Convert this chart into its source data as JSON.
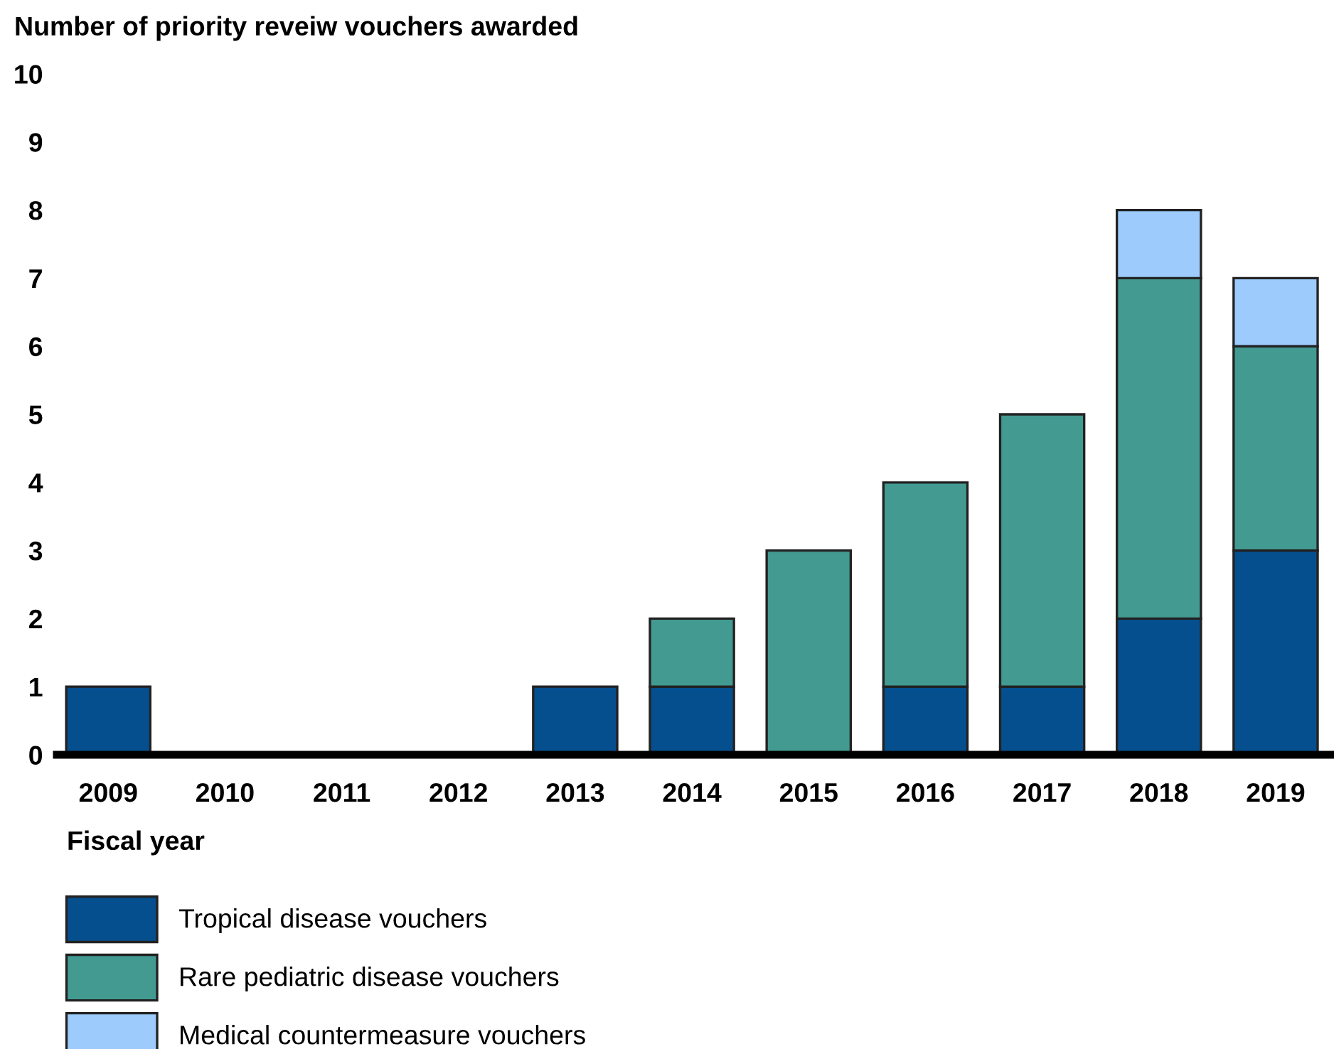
{
  "chart_data": {
    "type": "bar",
    "ylabel": "Number of priority reveiw vouchers awarded",
    "xlabel": "Fiscal year",
    "categories": [
      "2009",
      "2010",
      "2011",
      "2012",
      "2013",
      "2014",
      "2015",
      "2016",
      "2017",
      "2018",
      "2019"
    ],
    "stacked": true,
    "series": [
      {
        "name": "Tropical disease vouchers",
        "color": "#064f8f",
        "values": [
          1,
          0,
          0,
          0,
          1,
          1,
          0,
          1,
          1,
          2,
          3
        ]
      },
      {
        "name": "Rare pediatric disease vouchers",
        "color": "#429a91",
        "values": [
          0,
          0,
          0,
          0,
          0,
          1,
          3,
          3,
          4,
          5,
          3
        ]
      },
      {
        "name": "Medical countermeasure vouchers",
        "color": "#9ccbfc",
        "values": [
          0,
          0,
          0,
          0,
          0,
          0,
          0,
          0,
          0,
          1,
          1
        ]
      }
    ],
    "ylim": [
      0,
      10
    ],
    "yticks": [
      0,
      1,
      2,
      3,
      4,
      5,
      6,
      7,
      8,
      9,
      10
    ],
    "grid": false,
    "legend": "bottom left"
  }
}
